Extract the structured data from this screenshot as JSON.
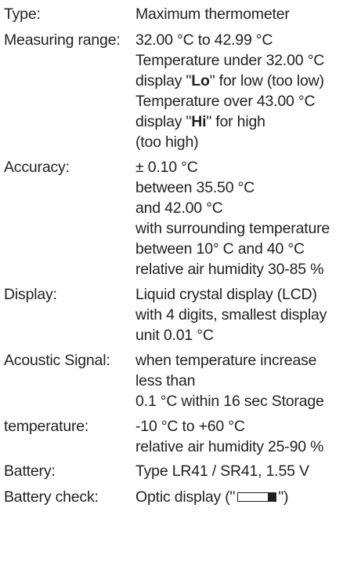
{
  "specs": [
    {
      "label": "Type:",
      "lines": [
        "Maximum thermometer"
      ]
    },
    {
      "label": "Measuring range:",
      "lines": [
        "32.00 °C to 42.99 °C",
        "Temperature under 32.00 °C",
        "display \"Lo\" for low (too low)",
        "Temperature over 43.00 °C",
        "display \"Hi\" for high",
        "(too high)"
      ]
    },
    {
      "label": "Accuracy:",
      "lines": [
        "± 0.10 °C",
        "between 35.50 °C",
        "and 42.00 °C",
        "with surrounding temperature",
        "between 10° C and 40 °C",
        "relative air humidity 30-85 %"
      ]
    },
    {
      "label": "Display:",
      "lines": [
        "Liquid crystal display (LCD)",
        "with 4 digits, smallest display",
        "unit 0.01 °C"
      ]
    },
    {
      "label": "Acoustic Signal:",
      "lines": [
        "when temperature increase",
        "less than",
        "0.1 °C within 16 sec Storage"
      ]
    },
    {
      "label": "temperature:",
      "lines": [
        "-10 °C to +60 °C",
        "relative air humidity 25-90 %"
      ]
    },
    {
      "label": "Battery:",
      "lines": [
        "Type LR41 / SR41, 1.55 V"
      ]
    },
    {
      "label": "Battery check:",
      "lines": [
        "Optic display (\"",
        "\")"
      ]
    }
  ],
  "inline_tokens": {
    "lo_prefix": "display \"",
    "lo_code": "Lo",
    "lo_suffix": "\" for low (too low)",
    "hi_prefix": "display \"",
    "hi_code": "Hi",
    "hi_suffix": "\" for high"
  },
  "icons": {
    "battery_check": "battery-level-icon"
  }
}
